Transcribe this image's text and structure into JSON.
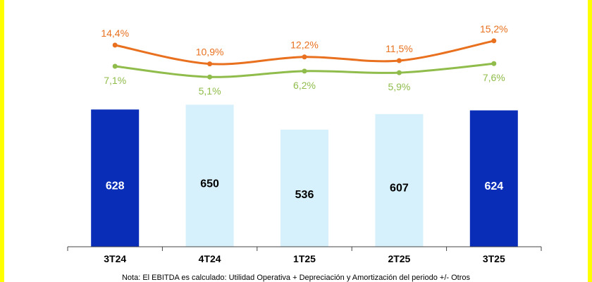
{
  "chart_data": {
    "type": "bar",
    "categories": [
      "3T24",
      "4T24",
      "1T25",
      "2T25",
      "3T25"
    ],
    "series": [
      {
        "name": "",
        "kind": "bar",
        "values": [
          628,
          650,
          536,
          607,
          624
        ],
        "colors": [
          "#0a2db8",
          "#d6f1fb",
          "#d6f1fb",
          "#d6f1fb",
          "#0a2db8"
        ],
        "label_colors": [
          "#ffffff",
          "#000000",
          "#000000",
          "#000000",
          "#ffffff"
        ]
      },
      {
        "name": "",
        "kind": "line",
        "values": [
          14.4,
          10.9,
          12.2,
          11.5,
          15.2
        ],
        "labels": [
          "14,4%",
          "10,9%",
          "12,2%",
          "11,5%",
          "15,2%"
        ],
        "color": "#e8701e"
      },
      {
        "name": "",
        "kind": "line",
        "values": [
          7.1,
          5.1,
          6.2,
          5.9,
          7.6
        ],
        "labels": [
          "7,1%",
          "5,1%",
          "6,2%",
          "5,9%",
          "7,6%"
        ],
        "color": "#8fbc4a"
      }
    ],
    "ylim": [
      0,
      750
    ],
    "title": "",
    "xlabel": "",
    "ylabel": "",
    "grid": false,
    "legend": "none"
  },
  "note": "Nota: El EBITDA es calculado: Utilidad Operativa  + Depreciación y Amortización del periodo +/- Otros"
}
